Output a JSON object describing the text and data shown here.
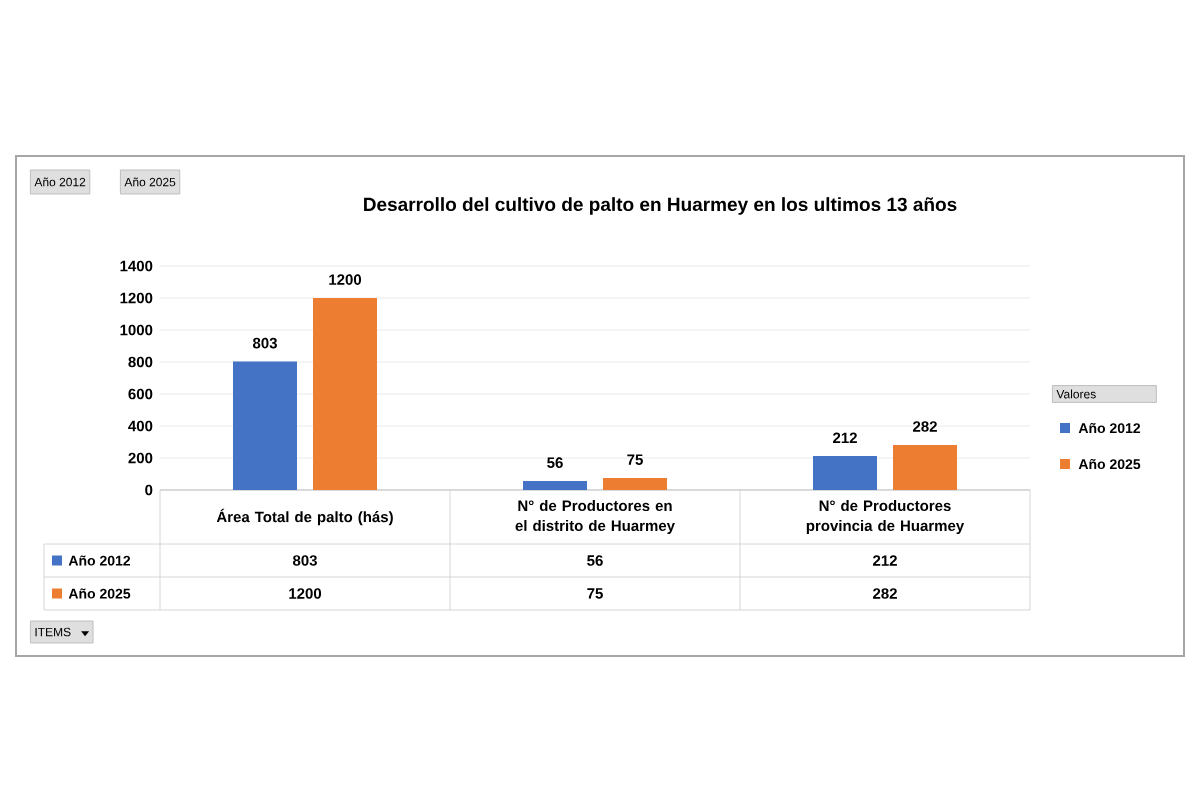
{
  "chart_data": {
    "type": "bar",
    "title": "Desarrollo  del cultivo de palto en Huarmey  en los ultimos 13 años",
    "categories": [
      "Área Total de palto (hás)",
      "N° de Productores en el distrito de Huarmey",
      "N° de Productores provincia de Huarmey"
    ],
    "series": [
      {
        "name": "Año 2012",
        "color": "#4472c4",
        "values": [
          803,
          56,
          212
        ],
        "value_labels": [
          "803",
          "56",
          "212"
        ]
      },
      {
        "name": "Año 2025",
        "color": "#ed7d31",
        "values": [
          1200,
          75,
          282
        ],
        "value_labels": [
          "1200",
          "75",
          "282"
        ]
      }
    ],
    "ylim": [
      0,
      1400
    ],
    "yticks": [
      0,
      200,
      400,
      600,
      800,
      1000,
      1200,
      1400
    ],
    "grid": "y",
    "data_labels": true,
    "legend": "right",
    "legend_title": "Valores",
    "annotations": [
      "Año 2012",
      "Año 2025",
      "ITEMS"
    ]
  }
}
